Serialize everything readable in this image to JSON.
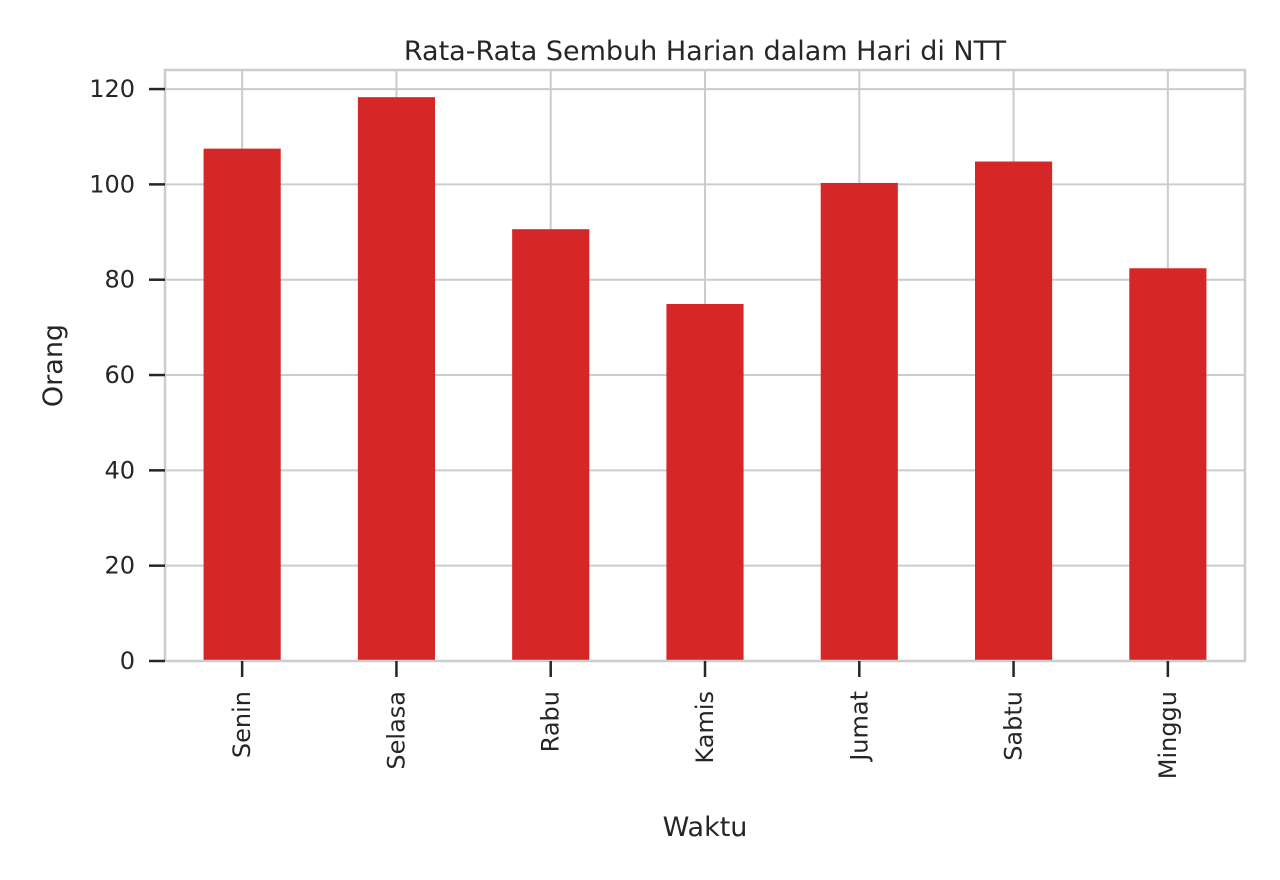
{
  "chart_data": {
    "type": "bar",
    "title": "Rata-Rata Sembuh Harian dalam Hari di NTT",
    "xlabel": "Waktu",
    "ylabel": "Orang",
    "categories": [
      "Senin",
      "Selasa",
      "Rabu",
      "Kamis",
      "Jumat",
      "Sabtu",
      "Minggu"
    ],
    "values": [
      107.5,
      118.3,
      90.6,
      74.9,
      100.3,
      104.8,
      82.4
    ],
    "ylim": [
      0,
      124
    ],
    "yticks": [
      0,
      20,
      40,
      60,
      80,
      100,
      120
    ],
    "bar_color": "#d62728",
    "grid": true,
    "legend": "none"
  }
}
